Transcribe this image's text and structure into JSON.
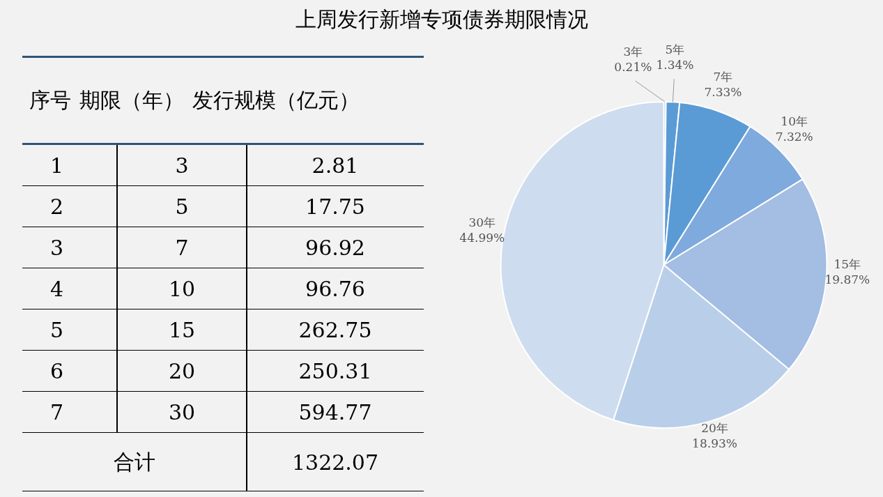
{
  "chart_data": [
    {
      "type": "heatmap",
      "ylabel": "序号",
      "categories": [
        "期限（年）",
        "发行规模（亿元）"
      ],
      "y_categories": [
        "1",
        "2",
        "3",
        "4",
        "5",
        "6",
        "7",
        "合计"
      ],
      "cells": [
        [
          3,
          2.81
        ],
        [
          5,
          17.75
        ],
        [
          7,
          96.92
        ],
        [
          10,
          96.76
        ],
        [
          15,
          262.75
        ],
        [
          20,
          250.31
        ],
        [
          30,
          594.77
        ],
        [
          null,
          1322.07
        ]
      ],
      "data_labels": true
    },
    {
      "type": "pie",
      "title": "上周发行新增专项债券期限情况",
      "categories": [
        "3年",
        "5年",
        "7年",
        "10年",
        "15年",
        "20年",
        "30年"
      ],
      "values": [
        0.21,
        1.34,
        7.33,
        7.32,
        19.87,
        18.93,
        44.99
      ],
      "value_labels": [
        "0.21%",
        "1.34%",
        "7.33%",
        "7.32%",
        "19.87%",
        "18.93%",
        "44.99%"
      ],
      "colors": [
        "#6e9fd8",
        "#5b9bd5",
        "#5b9bd5",
        "#7faadd",
        "#a3bde3",
        "#b9cee9",
        "#cedcef"
      ],
      "legend": false
    }
  ]
}
